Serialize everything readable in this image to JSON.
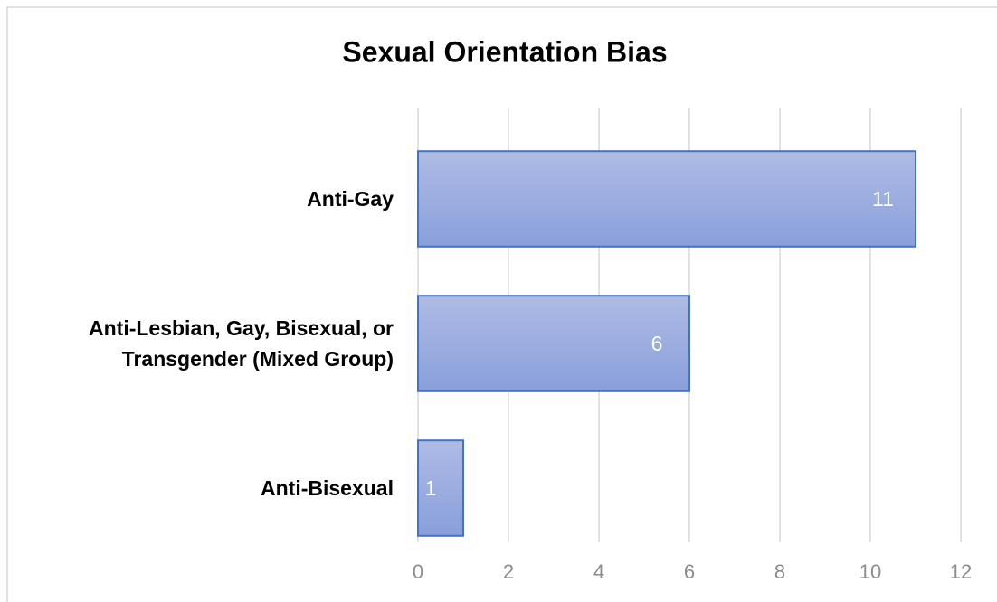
{
  "chart_data": {
    "type": "hbar",
    "title": "Sexual Orientation Bias",
    "categories": [
      "Anti-Gay",
      "Anti-Lesbian, Gay, Bisexual, or Transgender (Mixed Group)",
      "Anti-Bisexual"
    ],
    "values": [
      11,
      6,
      1
    ],
    "color": "#4472c4",
    "xlim": [
      0,
      12
    ],
    "xticks": [
      0,
      2,
      4,
      6,
      8,
      10,
      12
    ],
    "grid": true
  }
}
